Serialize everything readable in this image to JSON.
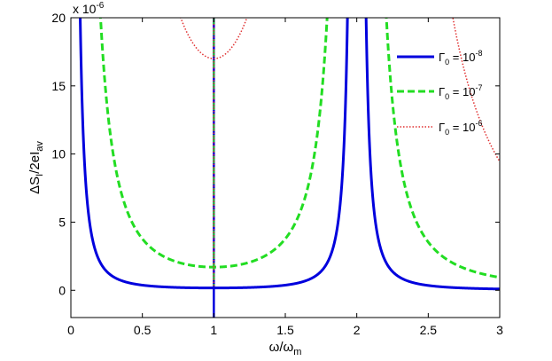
{
  "chart_data": {
    "type": "line",
    "xlabel": "ω/ω",
    "xlabel_sub": "m",
    "ylabel": "ΔS",
    "ylabel_sub1": "I",
    "ylabel_mid": "/2eI",
    "ylabel_sub2": "av",
    "exponent_label": "x 10",
    "exponent_power": "-6",
    "xlim": [
      0,
      3
    ],
    "ylim": [
      -2,
      20
    ],
    "x_ticks": [
      0,
      0.5,
      1,
      1.5,
      2,
      2.5,
      3
    ],
    "x_tick_labels": [
      "0",
      "0.5",
      "1",
      "1.5",
      "2",
      "2.5",
      "3"
    ],
    "y_ticks": [
      0,
      5,
      10,
      15,
      20
    ],
    "y_tick_labels": [
      "0",
      "5",
      "10",
      "15",
      "20"
    ],
    "legend_position": "top-right",
    "series": [
      {
        "name": "Γ",
        "name_sub": "0",
        "name_eq": " = 10",
        "name_sup": "-8",
        "color": "#0000dd",
        "style": "solid",
        "gamma": 1e-08
      },
      {
        "name": "Γ",
        "name_sub": "0",
        "name_eq": " = 10",
        "name_sup": "-7",
        "color": "#22dd22",
        "style": "dashed",
        "gamma": 1e-07
      },
      {
        "name": "Γ",
        "name_sub": "0",
        "name_eq": " = 10",
        "name_sup": "-6",
        "color": "#e03030",
        "style": "dotted",
        "gamma": 1e-06
      }
    ]
  }
}
